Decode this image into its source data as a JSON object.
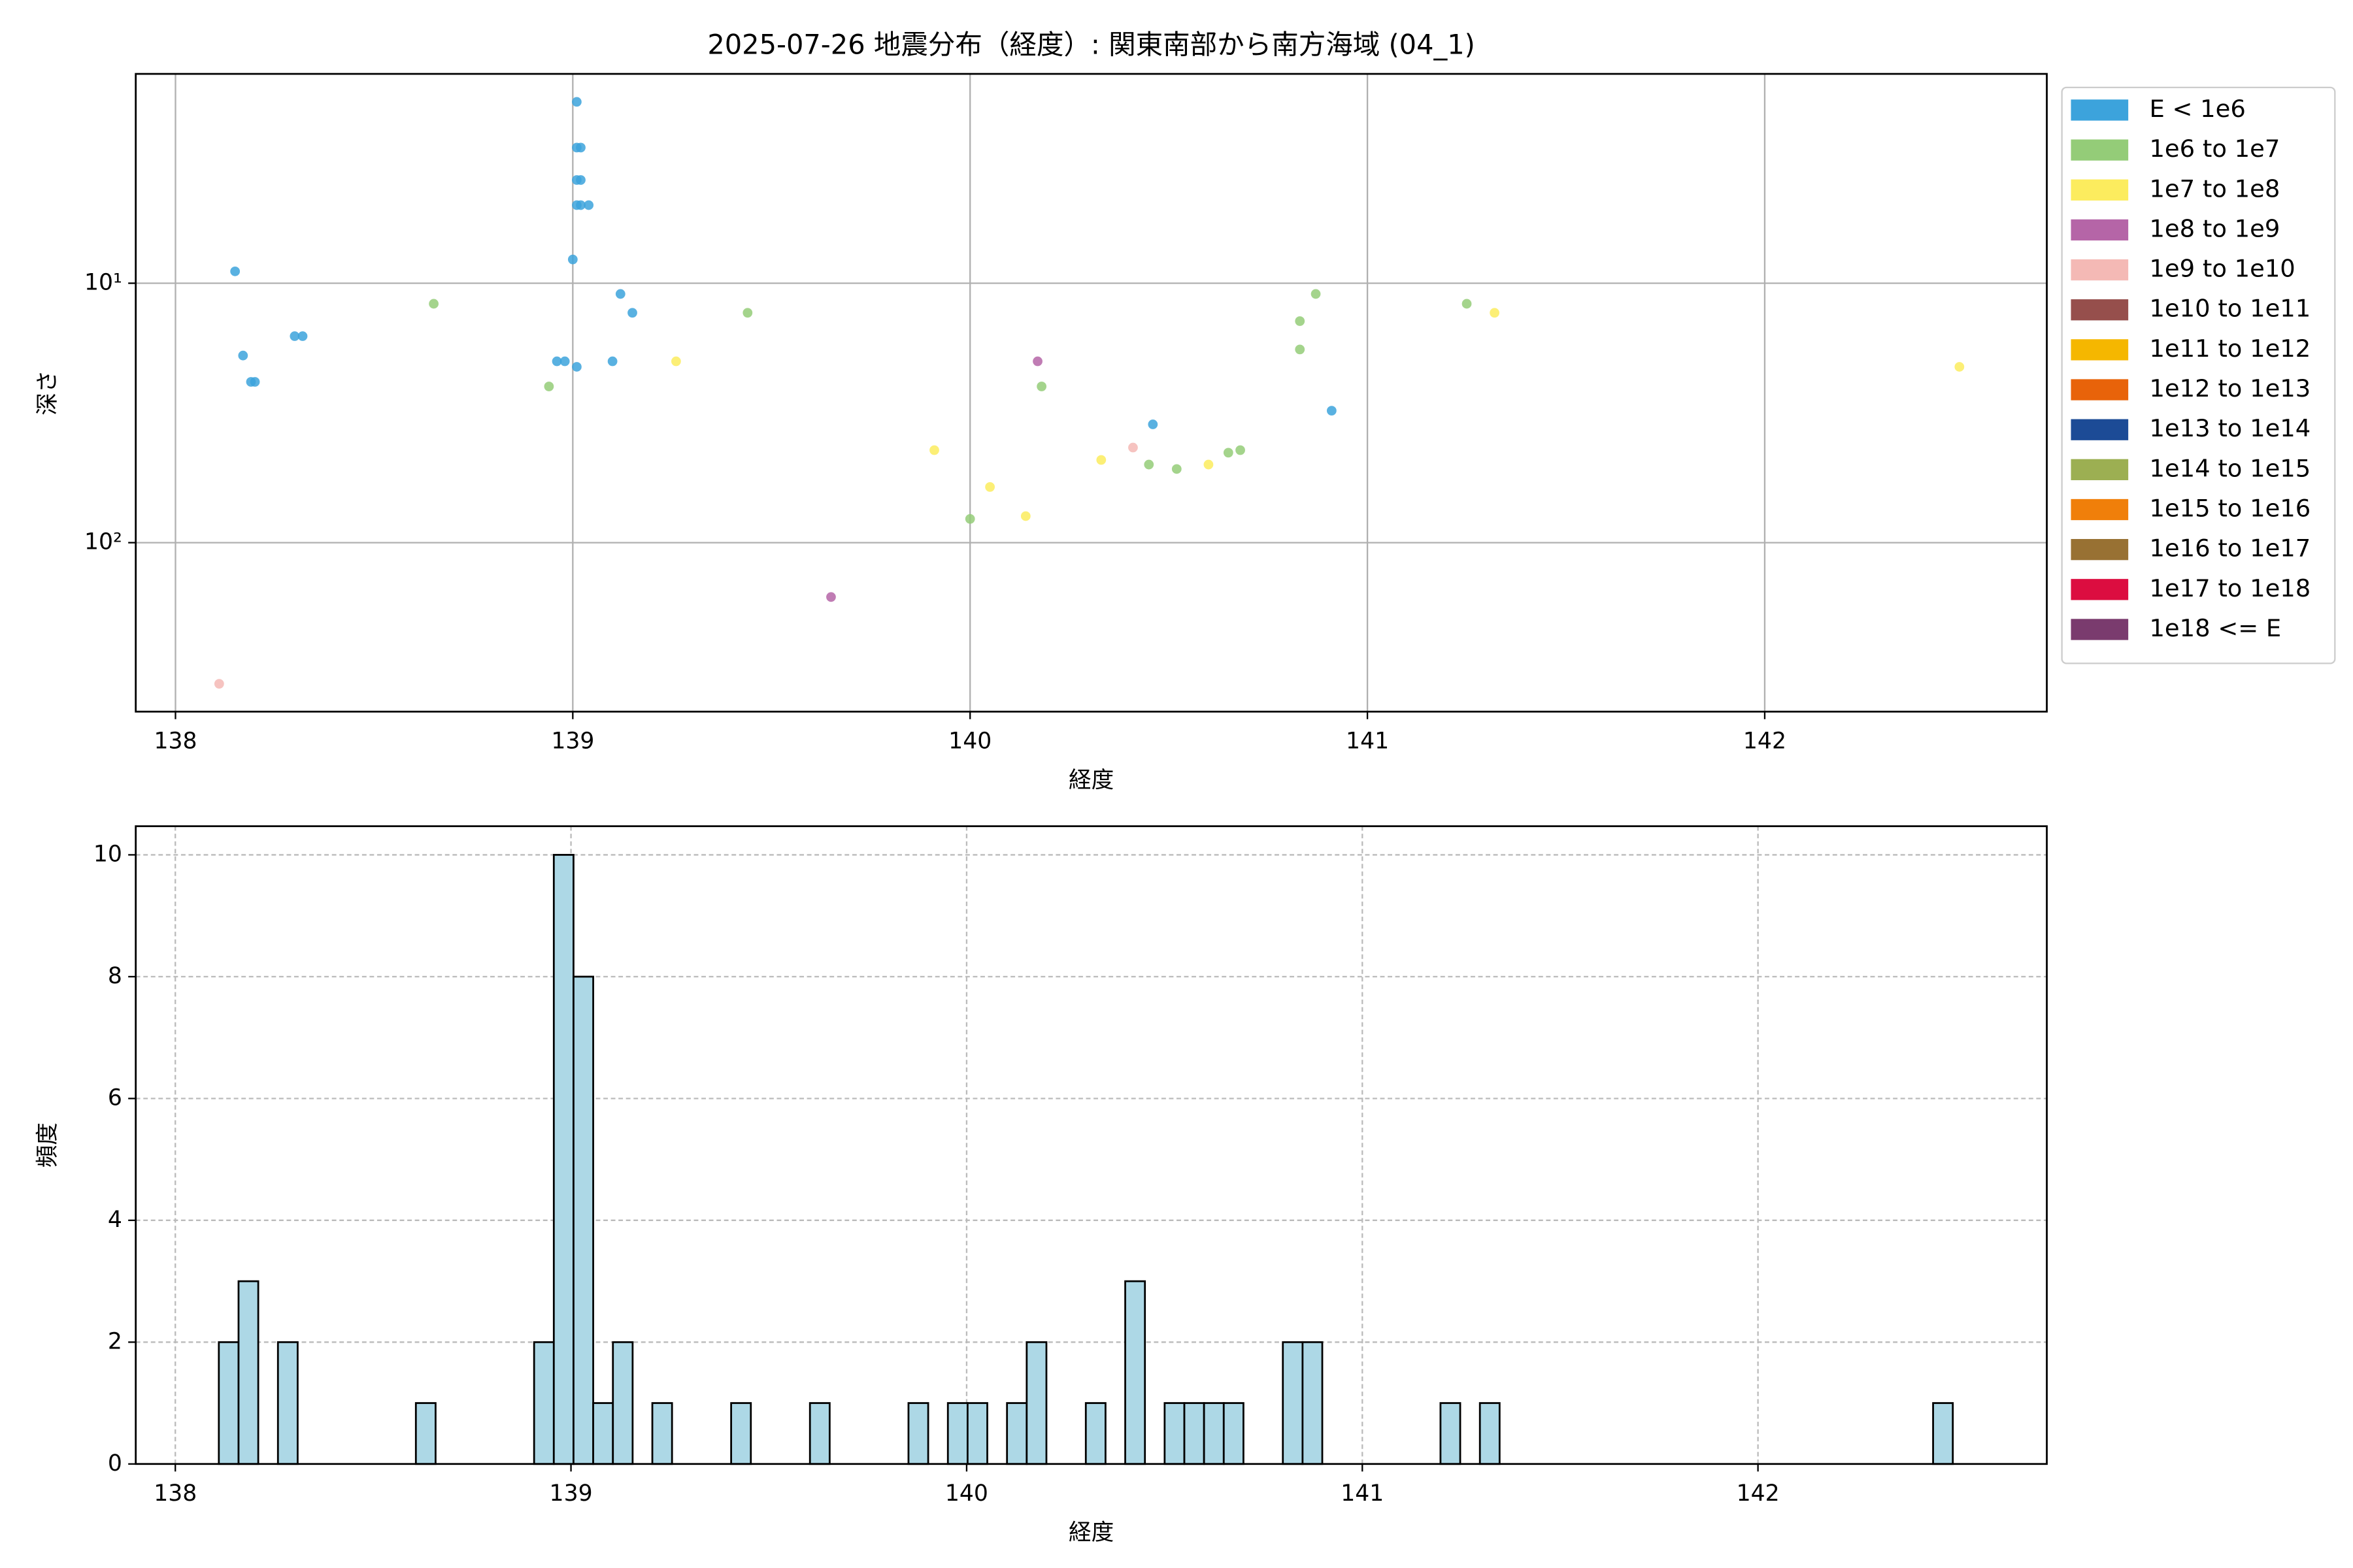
{
  "chart_data": [
    {
      "type": "scatter",
      "title": "2025-07-26 地震分布（経度）: 関東南部から南方海域 (04_1)",
      "xlabel": "経度",
      "ylabel": "深さ",
      "xlim": [
        137.9,
        142.71
      ],
      "ylim": [
        1.56,
        448
      ],
      "log_y": true,
      "invert_y": true,
      "xticks": [
        138,
        139,
        140,
        141,
        142
      ],
      "yticks": [
        {
          "value": 10,
          "label": "10¹"
        },
        {
          "value": 100,
          "label": "10²"
        }
      ],
      "grid": true,
      "grid_linestyle": "solid",
      "legend": "outside upper right",
      "series": [
        {
          "name": "E < 1e6",
          "color": "#3ca3dc",
          "x": [
            138.15,
            138.17,
            138.19,
            138.2,
            138.3,
            138.32,
            138.96,
            138.98,
            139.0,
            139.01,
            139.01,
            139.01,
            139.02,
            139.01,
            139.02,
            139.01,
            139.02,
            139.04,
            139.12,
            139.15,
            139.1,
            140.46,
            140.91
          ],
          "y": [
            9.0,
            19,
            24,
            24,
            16,
            16,
            20,
            20,
            8.1,
            21,
            2.0,
            3.0,
            3.0,
            4.0,
            4.0,
            5.0,
            5.0,
            5.0,
            11,
            13,
            20,
            35,
            31
          ]
        },
        {
          "name": "1e6 to 1e7",
          "color": "#94cc78",
          "x": [
            138.65,
            138.94,
            139.44,
            140.0,
            140.18,
            140.45,
            140.52,
            140.65,
            140.68,
            140.83,
            140.83,
            140.87,
            141.25
          ],
          "y": [
            12,
            25,
            13,
            81,
            25,
            50,
            52,
            45,
            44,
            14,
            18,
            11,
            12
          ]
        },
        {
          "name": "1e7 to 1e8",
          "color": "#fcec5e",
          "x": [
            139.26,
            139.91,
            140.05,
            140.14,
            140.33,
            140.6,
            141.32,
            142.49
          ],
          "y": [
            20,
            44,
            61,
            79,
            48,
            50,
            13,
            21
          ]
        },
        {
          "name": "1e8 to 1e9",
          "color": "#b565a7",
          "x": [
            140.17,
            139.65
          ],
          "y": [
            20,
            162
          ]
        },
        {
          "name": "1e9 to 1e10",
          "color": "#f4b9b5",
          "x": [
            138.11,
            140.41
          ],
          "y": [
            350,
            43
          ]
        },
        {
          "name": "1e10 to 1e11",
          "color": "#964f4c",
          "x": [],
          "y": []
        },
        {
          "name": "1e11 to 1e12",
          "color": "#f5b700",
          "x": [],
          "y": []
        },
        {
          "name": "1e12 to 1e13",
          "color": "#e8630a",
          "x": [],
          "y": []
        },
        {
          "name": "1e13 to 1e14",
          "color": "#1c4b96",
          "x": [],
          "y": []
        },
        {
          "name": "1e14 to 1e15",
          "color": "#9caf52",
          "x": [],
          "y": []
        },
        {
          "name": "1e15 to 1e16",
          "color": "#f07f0a",
          "x": [],
          "y": []
        },
        {
          "name": "1e16 to 1e17",
          "color": "#987133",
          "x": [],
          "y": []
        },
        {
          "name": "1e17 to 1e18",
          "color": "#dc0d40",
          "x": [],
          "y": []
        },
        {
          "name": "1e18 <= E",
          "color": "#7a3b6e",
          "x": [],
          "y": []
        }
      ]
    },
    {
      "type": "histogram",
      "xlabel": "経度",
      "ylabel": "頻度",
      "xlim": [
        137.9,
        142.73
      ],
      "ylim": [
        0,
        10.47
      ],
      "xticks": [
        138,
        139,
        140,
        141,
        142
      ],
      "yticks": [
        0,
        2,
        4,
        6,
        8,
        10
      ],
      "grid": true,
      "grid_linestyle": "dashed",
      "color": "#add8e6",
      "edge_color": "#000000",
      "bins": [
        138.11,
        138.1598,
        138.2096,
        138.2594,
        138.3092,
        138.359,
        138.4088,
        138.4586,
        138.5084,
        138.5582,
        138.608,
        138.6578,
        138.7076,
        138.7574,
        138.8072,
        138.857,
        138.9068,
        138.9566,
        139.0064,
        139.0562,
        139.106,
        139.1558,
        139.2056,
        139.2554,
        139.3052,
        139.355,
        139.4048,
        139.4546,
        139.5044,
        139.5542,
        139.604,
        139.6538,
        139.7036,
        139.7534,
        139.8032,
        139.853,
        139.9028,
        139.9526,
        140.0024,
        140.0522,
        140.102,
        140.1518,
        140.2016,
        140.2514,
        140.3012,
        140.351,
        140.4008,
        140.4506,
        140.5004,
        140.5502,
        140.6,
        140.6498,
        140.6996,
        140.7494,
        140.7992,
        140.849,
        140.8988,
        140.9486,
        140.9984,
        141.0482,
        141.098,
        141.1478,
        141.1976,
        141.2474,
        141.2972,
        141.347,
        141.3968,
        141.4466,
        141.4964,
        141.5462,
        141.596,
        141.6458,
        141.6956,
        141.7454,
        141.7952,
        141.845,
        141.8948,
        141.9446,
        141.9944,
        142.0442,
        142.094,
        142.1438,
        142.1936,
        142.2434,
        142.2932,
        142.343,
        142.3928,
        142.4426,
        142.4924
      ],
      "values": [
        2,
        3,
        0,
        2,
        0,
        0,
        0,
        0,
        0,
        0,
        1,
        0,
        0,
        0,
        0,
        0,
        2,
        10,
        8,
        1,
        2,
        0,
        1,
        0,
        0,
        0,
        1,
        0,
        0,
        0,
        1,
        0,
        0,
        0,
        0,
        1,
        0,
        1,
        1,
        0,
        1,
        2,
        0,
        0,
        1,
        0,
        3,
        0,
        1,
        1,
        1,
        1,
        0,
        0,
        2,
        2,
        0,
        0,
        0,
        0,
        0,
        0,
        1,
        0,
        1,
        0,
        0,
        0,
        0,
        0,
        0,
        0,
        0,
        0,
        0,
        0,
        0,
        0,
        0,
        0,
        0,
        0,
        0,
        0,
        0,
        0,
        0,
        1
      ]
    }
  ]
}
